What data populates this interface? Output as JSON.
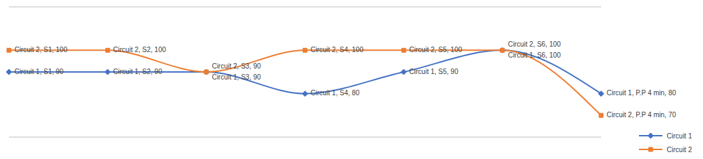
{
  "chart_data": {
    "type": "line",
    "categories": [
      "S1",
      "S2",
      "S3",
      "S4",
      "S5",
      "S6",
      "P.P 4 min"
    ],
    "series": [
      {
        "name": "Circuit 1",
        "color": "#4472c4",
        "marker": "diamond",
        "values": [
          90,
          90,
          90,
          80,
          90,
          100,
          80
        ],
        "value_labels": [
          "Circuit 1, S1, 90",
          "Circuit 1, S2, 90",
          "Circuit 1, S3, 90",
          "Circuit 1, S4, 80",
          "Circuit 1, S5, 90",
          "Circuit 1, S6, 100",
          "Circuit 1, P.P 4 min, 80"
        ]
      },
      {
        "name": "Circuit 2",
        "color": "#ed7d31",
        "marker": "square",
        "values": [
          100,
          100,
          90,
          100,
          100,
          100,
          70
        ],
        "value_labels": [
          "Circuit 2, S1, 100",
          "Circuit 2, S2, 100",
          "Circuit 2, S3, 90",
          "Circuit 2, S4, 100",
          "Circuit 2, S5, 100",
          "Circuit 2, S6, 100",
          "Circuit 2, P.P 4 min, 70"
        ]
      }
    ],
    "ylim": [
      60,
      120
    ],
    "yticks": [
      60,
      80,
      100,
      120
    ],
    "grid": true,
    "tick_labels": false,
    "data_labels": true,
    "legend": "bottom right",
    "line_style": "smooth"
  }
}
